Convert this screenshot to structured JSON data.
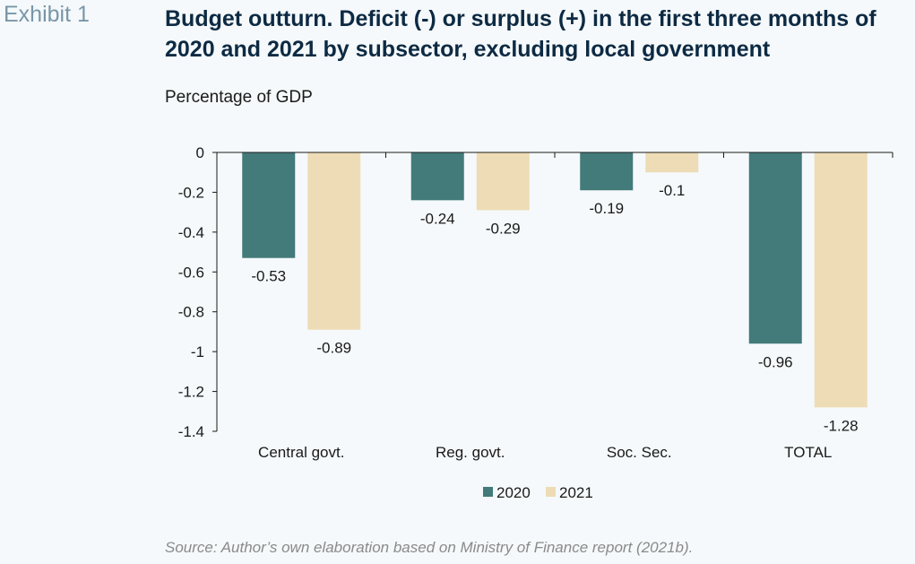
{
  "exhibit_label": "Exhibit 1",
  "title": "Budget outturn. Deficit (-) or surplus (+) in the first three months of 2020 and 2021 by subsector, excluding local government",
  "subtitle": "Percentage of GDP",
  "source": "Source: Author’s own elaboration based on Ministry of Finance report (2021b).",
  "colors": {
    "2020": "#437a7a",
    "2021": "#eddcb5"
  },
  "chart_data": {
    "type": "bar",
    "categories": [
      "Central govt.",
      "Reg. govt.",
      "Soc. Sec.",
      "TOTAL"
    ],
    "series": [
      {
        "name": "2020",
        "values": [
          -0.53,
          -0.24,
          -0.19,
          -0.96
        ],
        "labels": [
          "-0.53",
          "-0.24",
          "-0.19",
          "-0.96"
        ]
      },
      {
        "name": "2021",
        "values": [
          -0.89,
          -0.29,
          -0.1,
          -1.28
        ],
        "labels": [
          "-0.89",
          "-0.29",
          "-0.1",
          "-1.28"
        ]
      }
    ],
    "ylim": [
      -1.4,
      0
    ],
    "yticks": [
      0,
      -0.2,
      -0.4,
      -0.6,
      -0.8,
      -1,
      -1.2,
      -1.4
    ],
    "ytick_labels": [
      "0",
      "-0.2",
      "-0.4",
      "-0.6",
      "-0.8",
      "-1",
      "-1.2",
      "-1.4"
    ],
    "grid": false,
    "legend_position": "bottom-center",
    "xlabel": "",
    "ylabel": ""
  }
}
